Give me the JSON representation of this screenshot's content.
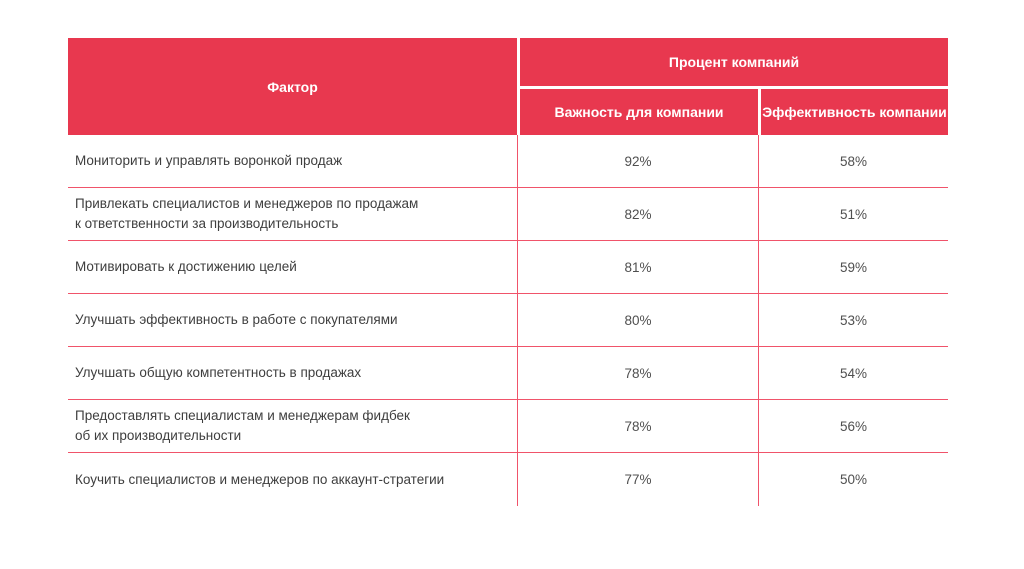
{
  "table": {
    "header": {
      "factor": "Фактор",
      "group": "Процент компаний",
      "importance": "Важность для компании",
      "effectiveness": "Эффективность компании"
    },
    "rows": [
      {
        "factor": "Мониторить и управлять воронкой продаж",
        "importance": "92%",
        "effectiveness": "58%"
      },
      {
        "factor": "Привлекать специалистов и менеджеров по продажам\nк ответственности за  производительность",
        "importance": "82%",
        "effectiveness": "51%"
      },
      {
        "factor": "Мотивировать к достижению целей",
        "importance": "81%",
        "effectiveness": "59%"
      },
      {
        "factor": "Улучшать эффективность в работе с покупателями",
        "importance": "80%",
        "effectiveness": "53%"
      },
      {
        "factor": "Улучшать общую компетентность в продажах",
        "importance": "78%",
        "effectiveness": "54%"
      },
      {
        "factor": "Предоставлять специалистам и менеджерам фидбек\nоб их производительности",
        "importance": "78%",
        "effectiveness": "56%"
      },
      {
        "factor": "Коучить специалистов и менеджеров по аккаунт-стратегии",
        "importance": "77%",
        "effectiveness": "50%"
      }
    ],
    "colors": {
      "header_bg": "#e8384f",
      "grid_line": "#f0536a",
      "header_text": "#ffffff",
      "body_text": "#3e3e3e"
    }
  },
  "chart_data": {
    "type": "table",
    "title": "",
    "column_group": {
      "label": "Процент компаний",
      "spans": [
        "Важность для компании",
        "Эффективность компании"
      ]
    },
    "columns": [
      "Фактор",
      "Важность для компании",
      "Эффективность компании"
    ],
    "rows": [
      [
        "Мониторить и управлять воронкой продаж",
        "92%",
        "58%"
      ],
      [
        "Привлекать специалистов и менеджеров по продажам к ответственности за производительность",
        "82%",
        "51%"
      ],
      [
        "Мотивировать к достижению целей",
        "81%",
        "59%"
      ],
      [
        "Улучшать эффективность в работе с покупателями",
        "80%",
        "53%"
      ],
      [
        "Улучшать общую компетентность в продажах",
        "78%",
        "54%"
      ],
      [
        "Предоставлять специалистам и менеджерам фидбек об их производительности",
        "78%",
        "56%"
      ],
      [
        "Коучить специалистов и менеджеров по аккаунт-стратегии",
        "77%",
        "50%"
      ]
    ]
  }
}
